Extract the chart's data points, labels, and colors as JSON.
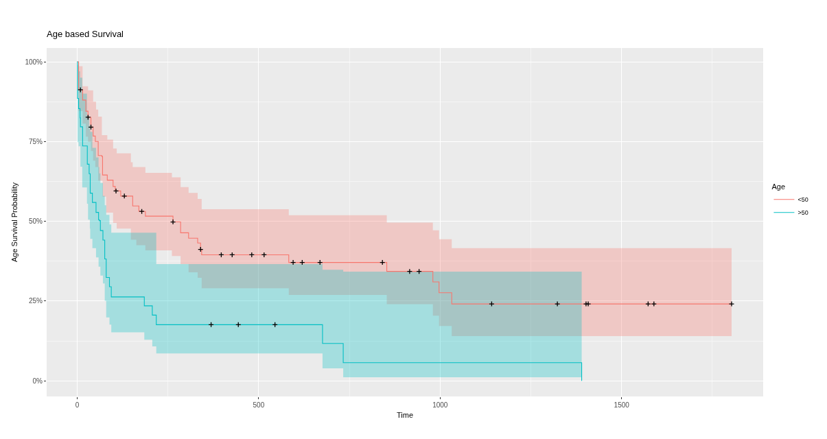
{
  "chart_data": {
    "type": "step",
    "title": "Age based Survival",
    "xlabel": "Time",
    "ylabel": "Age Survival Probability",
    "legend_title": "Age",
    "xlim": [
      -84,
      1890
    ],
    "xticks": [
      0,
      500,
      1000,
      1500
    ],
    "ylim": [
      -4.9,
      104.3
    ],
    "yticks": [
      {
        "value": 0,
        "label": "0%"
      },
      {
        "value": 25,
        "label": "25%"
      },
      {
        "value": 50,
        "label": "50%"
      },
      {
        "value": 75,
        "label": "75%"
      },
      {
        "value": 100,
        "label": "100%"
      }
    ],
    "grid": true,
    "legend": "right",
    "line_style": "solid",
    "series": [
      {
        "name": "<50",
        "color": "#f8766d",
        "x": [
          0,
          4,
          15,
          24,
          30,
          38,
          44,
          50,
          52,
          58,
          68,
          70,
          80,
          83,
          99,
          105,
          109,
          120,
          148,
          153,
          163,
          170,
          188,
          261,
          264,
          285,
          307,
          332,
          340,
          343,
          583,
          853,
          980,
          997,
          1032,
          1803
        ],
        "values": [
          100,
          91.2,
          88.0,
          84.5,
          82.6,
          79.5,
          76.7,
          75.0,
          75.0,
          70.6,
          70.3,
          64.5,
          64.5,
          62.9,
          60.9,
          59.5,
          59.5,
          57.9,
          57.9,
          54.8,
          54.8,
          53.1,
          51.6,
          51.6,
          49.8,
          46.4,
          44.7,
          43.2,
          41.2,
          39.5,
          37.1,
          34.3,
          31.0,
          27.6,
          24.1,
          24.1
        ],
        "lower": [
          100,
          84.5,
          80.6,
          76.5,
          74.9,
          72.0,
          69.0,
          67.0,
          67.0,
          62.7,
          62.7,
          57.7,
          52.7,
          52.7,
          49.5,
          49.5,
          47.7,
          47.7,
          44.2,
          44.2,
          42.5,
          42.5,
          40.9,
          39.1,
          39.1,
          36.6,
          34.0,
          32.3,
          32.3,
          29.0,
          26.9,
          24.0,
          20.4,
          17.2,
          14.0,
          14.0
        ],
        "upper": [
          100,
          98.6,
          92.3,
          92.3,
          91.0,
          91.0,
          87.5,
          87.5,
          85.0,
          82.8,
          77.0,
          77.0,
          77.0,
          75.6,
          72.8,
          72.8,
          71.3,
          71.3,
          68.5,
          67.0,
          67.0,
          67.0,
          65.2,
          63.8,
          63.8,
          60.7,
          58.9,
          57.0,
          57.0,
          53.8,
          51.9,
          49.6,
          47.2,
          44.4,
          41.6,
          41.6
        ]
      },
      {
        "name": ">50",
        "color": "#00bfc4",
        "x": [
          0,
          1,
          4,
          8,
          9,
          14,
          15,
          27,
          28,
          30,
          33,
          35,
          36,
          42,
          52,
          59,
          61,
          64,
          71,
          76,
          80,
          89,
          94,
          185,
          207,
          218,
          676,
          733,
          1390
        ],
        "values": [
          100,
          88.5,
          85.3,
          82.4,
          79.6,
          79.6,
          73.6,
          73.6,
          67.9,
          67.9,
          64.9,
          64.9,
          58.8,
          55.9,
          52.8,
          50.5,
          50.2,
          47.1,
          44.1,
          38.2,
          32.4,
          29.5,
          26.3,
          23.5,
          20.6,
          17.6,
          11.7,
          5.7,
          0
        ],
        "lower": [
          100,
          74.8,
          73.5,
          73.5,
          67.1,
          60.6,
          60.6,
          55.5,
          55.5,
          50.5,
          50.5,
          47.7,
          44.5,
          41.6,
          38.7,
          35.8,
          35.8,
          33.0,
          30.5,
          25.1,
          19.9,
          17.6,
          15.2,
          12.9,
          10.8,
          8.6,
          3.9,
          1.1,
          0
        ],
        "upper": [
          100,
          99,
          97,
          95,
          95,
          90,
          90,
          83,
          83,
          83,
          80,
          80,
          78,
          73,
          70,
          67,
          65,
          62,
          58,
          55,
          52,
          49,
          46.4,
          46.4,
          46.4,
          36.6,
          34.8,
          34.2,
          0
        ]
      },
      {
        "type": "scatter",
        "color": "#000000",
        "marker": "cross",
        "x": [
          9,
          30,
          38,
          107,
          130,
          178,
          264,
          340,
          397,
          427,
          481,
          515,
          595,
          620,
          669,
          841,
          916,
          942,
          1142,
          1323,
          1402,
          1408,
          1573,
          1589,
          1803,
          369,
          444,
          545
        ],
        "values": [
          91.2,
          82.6,
          79.5,
          59.5,
          57.9,
          53.1,
          49.8,
          41.2,
          39.5,
          39.5,
          39.5,
          39.5,
          37.1,
          37.1,
          37.1,
          37.1,
          34.3,
          34.3,
          24.1,
          24.1,
          24.1,
          24.1,
          24.1,
          24.1,
          24.1,
          17.6,
          17.6,
          17.6
        ]
      }
    ]
  }
}
